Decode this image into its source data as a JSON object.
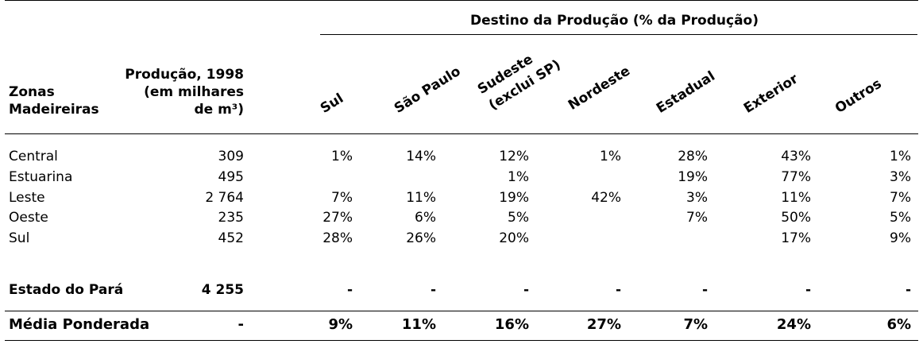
{
  "header": {
    "zona_label_line1": "Zonas",
    "zona_label_line2": "Madeireiras",
    "producao_line1": "Produção, 1998",
    "producao_line2": "(em milhares",
    "producao_line3": "de m³)",
    "destino_title": "Destino da Produção (% da Produção)"
  },
  "columns": [
    "Sul",
    "São Paulo",
    "Sudeste",
    "(exclui SP)",
    "Nordeste",
    "Estadual",
    "Exterior",
    "Outros"
  ],
  "rows": [
    {
      "zona": "Central",
      "producao": "309",
      "vals": [
        "1%",
        "14%",
        "12%",
        "1%",
        "28%",
        "43%",
        "1%"
      ]
    },
    {
      "zona": "Estuarina",
      "producao": "495",
      "vals": [
        "",
        "",
        "1%",
        "",
        "19%",
        "77%",
        "3%"
      ]
    },
    {
      "zona": "Leste",
      "producao": "2 764",
      "vals": [
        "7%",
        "11%",
        "19%",
        "42%",
        "3%",
        "11%",
        "7%"
      ]
    },
    {
      "zona": "Oeste",
      "producao": "235",
      "vals": [
        "27%",
        "6%",
        "5%",
        "",
        "7%",
        "50%",
        "5%"
      ]
    },
    {
      "zona": "Sul",
      "producao": "452",
      "vals": [
        "28%",
        "26%",
        "20%",
        "",
        "",
        "17%",
        "9%"
      ]
    }
  ],
  "estado": {
    "label": "Estado do Pará",
    "producao": "4 255",
    "vals": [
      "-",
      "-",
      "-",
      "-",
      "-",
      "-",
      "-"
    ]
  },
  "media": {
    "label": "Média Ponderada",
    "producao": "-",
    "vals": [
      "9%",
      "11%",
      "16%",
      "27%",
      "7%",
      "24%",
      "6%"
    ]
  }
}
